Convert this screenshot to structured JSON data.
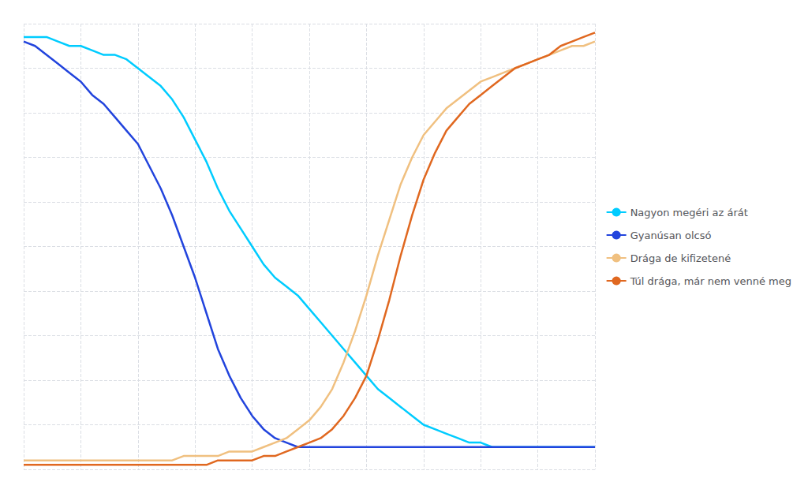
{
  "chart_data": {
    "type": "line",
    "x": [
      0,
      2,
      4,
      6,
      8,
      10,
      12,
      14,
      16,
      18,
      20,
      22,
      24,
      26,
      28,
      30,
      32,
      34,
      36,
      38,
      40,
      42,
      44,
      46,
      48,
      50,
      52,
      54,
      56,
      58,
      60,
      62,
      64,
      66,
      68,
      70,
      72,
      74,
      76,
      78,
      80,
      82,
      84,
      86,
      88,
      90,
      92,
      94,
      96,
      98,
      100
    ],
    "series": [
      {
        "name": "Nagyon megéri az árát",
        "color": "#00ccff",
        "values": [
          97,
          97,
          97,
          96,
          95,
          95,
          94,
          93,
          93,
          92,
          90,
          88,
          86,
          83,
          79,
          74,
          69,
          63,
          58,
          54,
          50,
          46,
          43,
          41,
          39,
          36,
          33,
          30,
          27,
          24,
          21,
          18,
          16,
          14,
          12,
          10,
          9,
          8,
          7,
          6,
          6,
          5,
          5,
          5,
          5,
          5,
          5,
          5,
          5,
          5,
          5
        ]
      },
      {
        "name": "Gyanúsan olcsó",
        "color": "#2244dd",
        "values": [
          96,
          95,
          93,
          91,
          89,
          87,
          84,
          82,
          79,
          76,
          73,
          68,
          63,
          57,
          50,
          43,
          35,
          27,
          21,
          16,
          12,
          9,
          7,
          6,
          5,
          5,
          5,
          5,
          5,
          5,
          5,
          5,
          5,
          5,
          5,
          5,
          5,
          5,
          5,
          5,
          5,
          5,
          5,
          5,
          5,
          5,
          5,
          5,
          5,
          5,
          5
        ]
      },
      {
        "name": "Drága de kifizetené",
        "color": "#f0c080",
        "values": [
          2,
          2,
          2,
          2,
          2,
          2,
          2,
          2,
          2,
          2,
          2,
          2,
          2,
          2,
          3,
          3,
          3,
          3,
          4,
          4,
          4,
          5,
          6,
          7,
          9,
          11,
          14,
          18,
          24,
          31,
          39,
          48,
          56,
          64,
          70,
          75,
          78,
          81,
          83,
          85,
          87,
          88,
          89,
          90,
          91,
          92,
          93,
          94,
          95,
          95,
          96
        ]
      },
      {
        "name": "Túl drága, már nem venné meg",
        "color": "#e06820",
        "values": [
          1,
          1,
          1,
          1,
          1,
          1,
          1,
          1,
          1,
          1,
          1,
          1,
          1,
          1,
          1,
          1,
          1,
          2,
          2,
          2,
          2,
          3,
          3,
          4,
          5,
          6,
          7,
          9,
          12,
          16,
          21,
          29,
          38,
          48,
          57,
          65,
          71,
          76,
          79,
          82,
          84,
          86,
          88,
          90,
          91,
          92,
          93,
          95,
          96,
          97,
          98
        ]
      }
    ],
    "xlim": [
      0,
      100
    ],
    "ylim": [
      0,
      100
    ],
    "xticks": [
      0,
      10,
      20,
      30,
      40,
      50,
      60,
      70,
      80,
      90,
      100
    ],
    "yticks": [
      0,
      10,
      20,
      30,
      40,
      50,
      60,
      70,
      80,
      90,
      100
    ],
    "grid": true,
    "legend": "right",
    "tick_labels": false
  }
}
